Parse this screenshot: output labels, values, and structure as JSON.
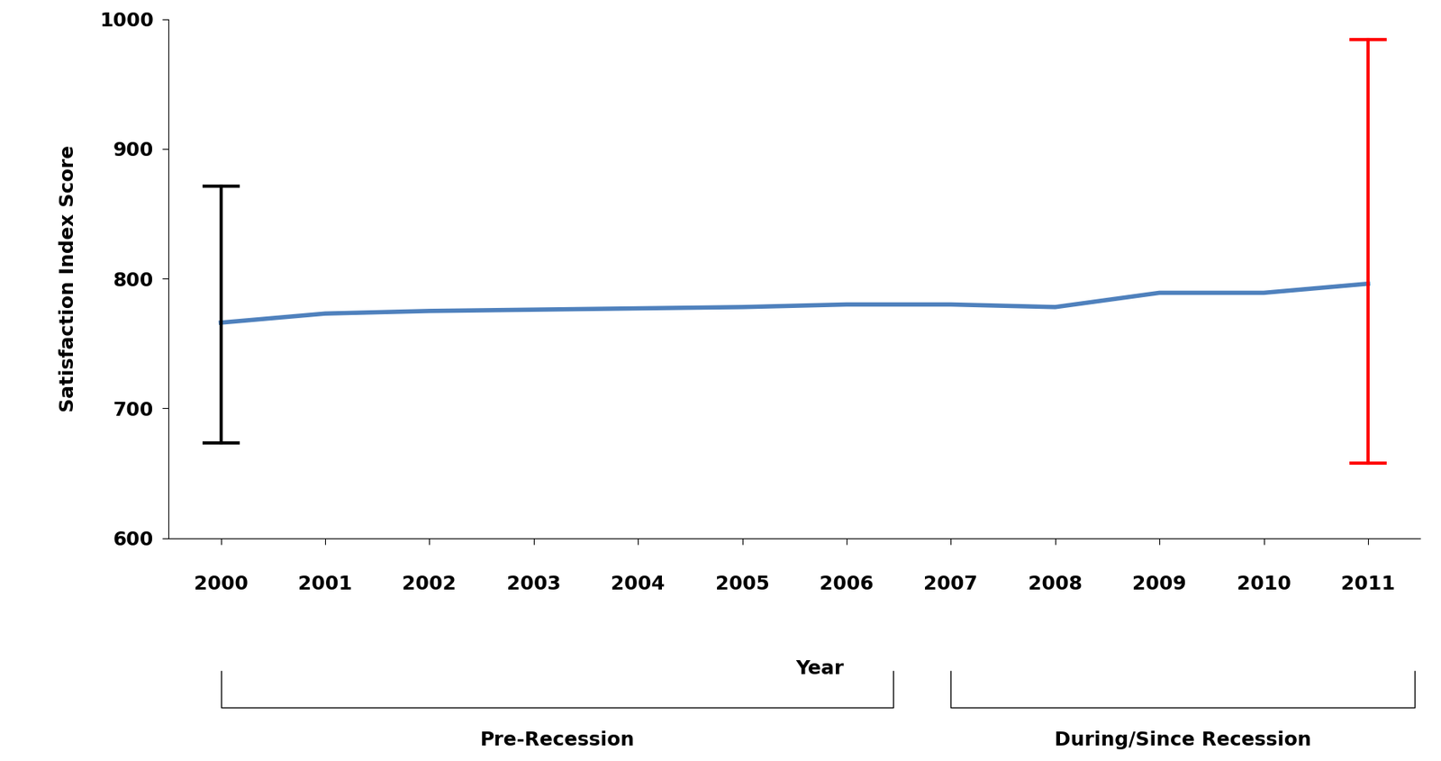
{
  "chart_data": {
    "type": "line",
    "x_label": "Year",
    "y_label": "Satisfaction Index Score",
    "categories": [
      "2000",
      "2001",
      "2002",
      "2003",
      "2004",
      "2005",
      "2006",
      "2007",
      "2008",
      "2009",
      "2010",
      "2011"
    ],
    "values": [
      766,
      773,
      775,
      776,
      777,
      778,
      780,
      780,
      778,
      789,
      789,
      796
    ],
    "color": "#4f81bd",
    "ylim": [
      600,
      1000
    ],
    "yticks": [
      600,
      700,
      800,
      900,
      1000
    ],
    "grid": false,
    "error_bars": [
      {
        "category": "2000",
        "low": 673,
        "high": 871,
        "color": "#000000"
      },
      {
        "category": "2011",
        "low": 658,
        "high": 984,
        "color": "#ff0000"
      }
    ],
    "groups": [
      {
        "label": "Pre-Recession",
        "from": "2000",
        "to": "2006"
      },
      {
        "label": "During/Since Recession",
        "from": "2007",
        "to": "2011"
      }
    ]
  }
}
